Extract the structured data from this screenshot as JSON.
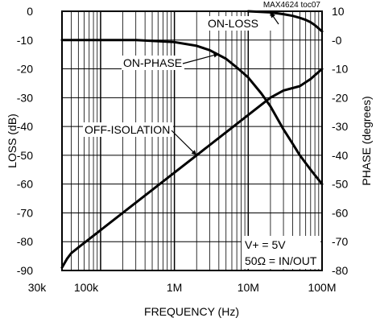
{
  "chart_data": {
    "type": "line",
    "tag": "MAX4624 toc07",
    "xlabel": "FREQUENCY (Hz)",
    "ylabel_left": "LOSS (dB)",
    "ylabel_right": "PHASE (degrees)",
    "x_scale": "log",
    "xlim": [
      30000,
      100000000
    ],
    "ylim_left": [
      -90,
      0
    ],
    "ylim_right": [
      -80,
      10
    ],
    "grid": true,
    "x_tick_labels": [
      {
        "value": 30000,
        "label": "30k"
      },
      {
        "value": 100000,
        "label": "100k"
      },
      {
        "value": 1000000,
        "label": "1M"
      },
      {
        "value": 10000000,
        "label": "10M"
      },
      {
        "value": 100000000,
        "label": "100M"
      }
    ],
    "y_left_ticks": [
      "0",
      "-10",
      "-20",
      "-30",
      "-40",
      "-50",
      "-60",
      "-70",
      "-80",
      "-90"
    ],
    "y_left_values": [
      0,
      -10,
      -20,
      -30,
      -40,
      -50,
      -60,
      -70,
      -80,
      -90
    ],
    "y_right_ticks": [
      "10",
      "-0",
      "-10",
      "-20",
      "-30",
      "-40",
      "-50",
      "-60",
      "-70",
      "-80"
    ],
    "y_right_values": [
      10,
      0,
      -10,
      -20,
      -30,
      -40,
      -50,
      -60,
      -70,
      -80
    ],
    "series": [
      {
        "name": "ON-LOSS",
        "axis": "left",
        "x": [
          10000000,
          20000000,
          30000000,
          40000000,
          50000000,
          60000000,
          70000000,
          80000000,
          100000000
        ],
        "y": [
          0,
          -0.4,
          -1.0,
          -1.6,
          -2.3,
          -3.0,
          -3.8,
          -4.8,
          -7.0
        ]
      },
      {
        "name": "ON-PHASE",
        "axis": "right",
        "x": [
          30000,
          100000,
          300000,
          1000000,
          2000000,
          3000000,
          5000000,
          7000000,
          10000000,
          15000000,
          20000000,
          30000000,
          40000000,
          50000000,
          70000000,
          100000000
        ],
        "y": [
          0,
          0,
          0,
          -0.7,
          -2,
          -3.5,
          -6.5,
          -9.5,
          -13,
          -18.5,
          -23,
          -31,
          -36,
          -40,
          -45,
          -50
        ]
      },
      {
        "name": "OFF-ISOLATION",
        "axis": "left",
        "x": [
          30000,
          35000,
          40000,
          50000,
          100000,
          1000000,
          2000000,
          10000000,
          20000000,
          30000000,
          50000000,
          70000000,
          100000000
        ],
        "y": [
          -89,
          -86,
          -84,
          -82,
          -76,
          -56,
          -50,
          -36,
          -30,
          -27.5,
          -26,
          -23.5,
          -20
        ]
      }
    ],
    "annotations": [
      {
        "text": "ON-LOSS",
        "series": "ON-LOSS"
      },
      {
        "text": "ON-PHASE",
        "series": "ON-PHASE"
      },
      {
        "text": "OFF-ISOLATION",
        "series": "OFF-ISOLATION"
      }
    ],
    "condition_lines": [
      "V+ = 5V",
      "50Ω = IN/OUT"
    ]
  }
}
